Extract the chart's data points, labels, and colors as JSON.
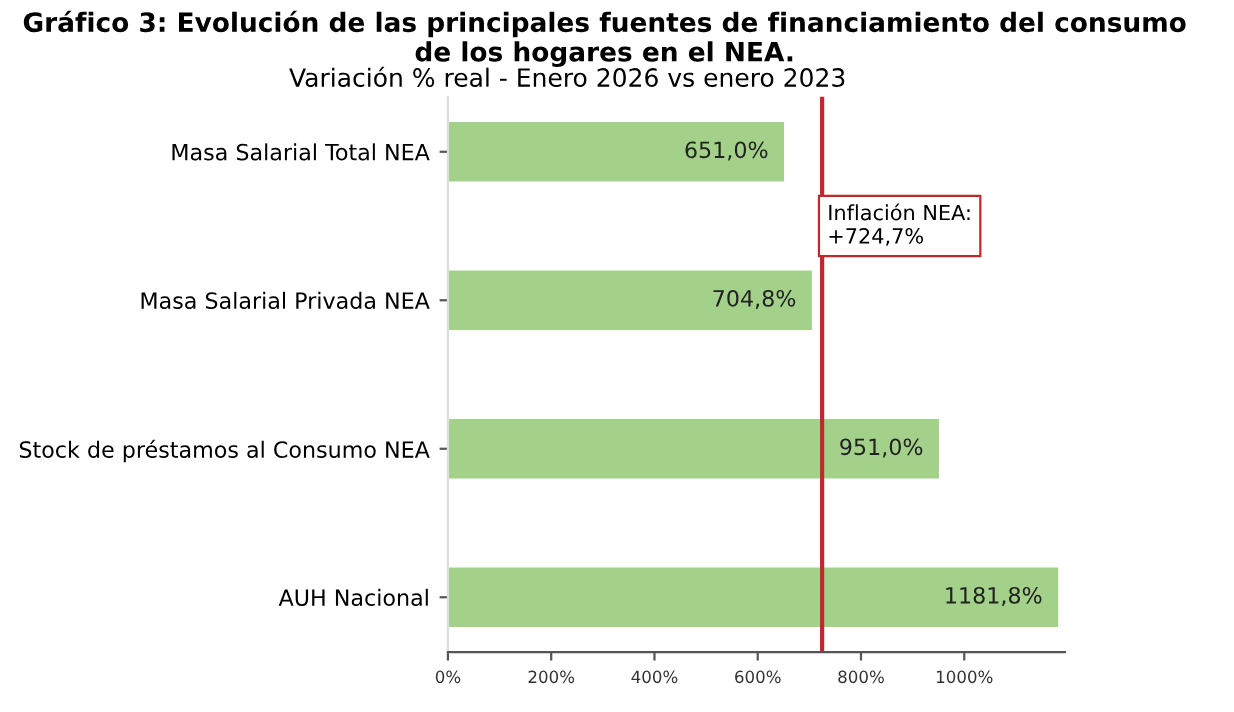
{
  "chart_data": {
    "type": "bar",
    "orientation": "horizontal",
    "title": "Gráfico 3: Evolución de las principales fuentes de financiamiento del consumo de los hogares en el NEA.",
    "subtitle": "Variación % real - Enero 2026 vs enero 2023",
    "categories": [
      "Masa Salarial Total NEA",
      "Masa Salarial Privada NEA",
      "Stock de préstamos al Consumo NEA",
      "AUH Nacional"
    ],
    "values": [
      651.0,
      704.8,
      951.0,
      1181.8
    ],
    "value_labels": [
      "651,0%",
      "704,8%",
      "951,0%",
      "1181,8%"
    ],
    "color": "#a3d18a",
    "xlim": [
      0,
      1195
    ],
    "xticks": [
      {
        "value": 0,
        "label": "0%"
      },
      {
        "value": 200,
        "label": "200%"
      },
      {
        "value": 400,
        "label": "400%"
      },
      {
        "value": 600,
        "label": "600%"
      },
      {
        "value": 800,
        "label": "800%"
      },
      {
        "value": 1000,
        "label": "1000%"
      }
    ],
    "ref_lines": [
      {
        "axis": "x",
        "value": 724.7,
        "label": "Inflación NEA:\n+724,7%",
        "color": "#c0282d",
        "line_style": "solid"
      }
    ],
    "grid": false,
    "legend": false
  }
}
